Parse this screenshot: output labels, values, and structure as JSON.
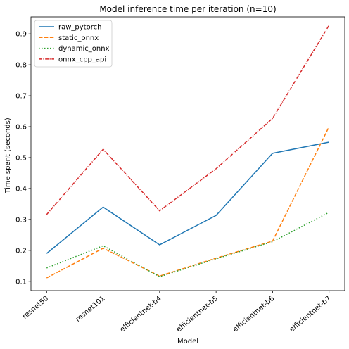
{
  "chart_data": {
    "type": "line",
    "title": "Model inference time per iteration (n=10)",
    "xlabel": "Model",
    "ylabel": "Time spent (seconds)",
    "categories": [
      "resnet50",
      "resnet101",
      "efficientnet-b4",
      "efficientnet-b5",
      "efficientnet-b6",
      "efficientnet-b7"
    ],
    "ylim": [
      0.07,
      0.955
    ],
    "yticks": [
      0.1,
      0.2,
      0.3,
      0.4,
      0.5,
      0.6,
      0.7,
      0.8,
      0.9
    ],
    "ytick_labels": [
      "0.1",
      "0.2",
      "0.3",
      "0.4",
      "0.5",
      "0.6",
      "0.7",
      "0.8",
      "0.9"
    ],
    "grid": false,
    "legend_position": "top-left",
    "series": [
      {
        "name": "raw_pytorch",
        "color": "#1f77b4",
        "dash": "solid",
        "values": [
          0.19,
          0.34,
          0.218,
          0.313,
          0.514,
          0.55
        ]
      },
      {
        "name": "static_onnx",
        "color": "#ff7f0e",
        "dash": "dashed",
        "values": [
          0.111,
          0.207,
          0.117,
          0.175,
          0.23,
          0.6
        ]
      },
      {
        "name": "dynamic_onnx",
        "color": "#2ca02c",
        "dash": "dotted",
        "values": [
          0.143,
          0.215,
          0.115,
          0.173,
          0.228,
          0.323
        ]
      },
      {
        "name": "onnx_cpp_api",
        "color": "#d62728",
        "dash": "dashdot",
        "values": [
          0.316,
          0.527,
          0.328,
          0.464,
          0.627,
          0.928
        ]
      }
    ]
  }
}
